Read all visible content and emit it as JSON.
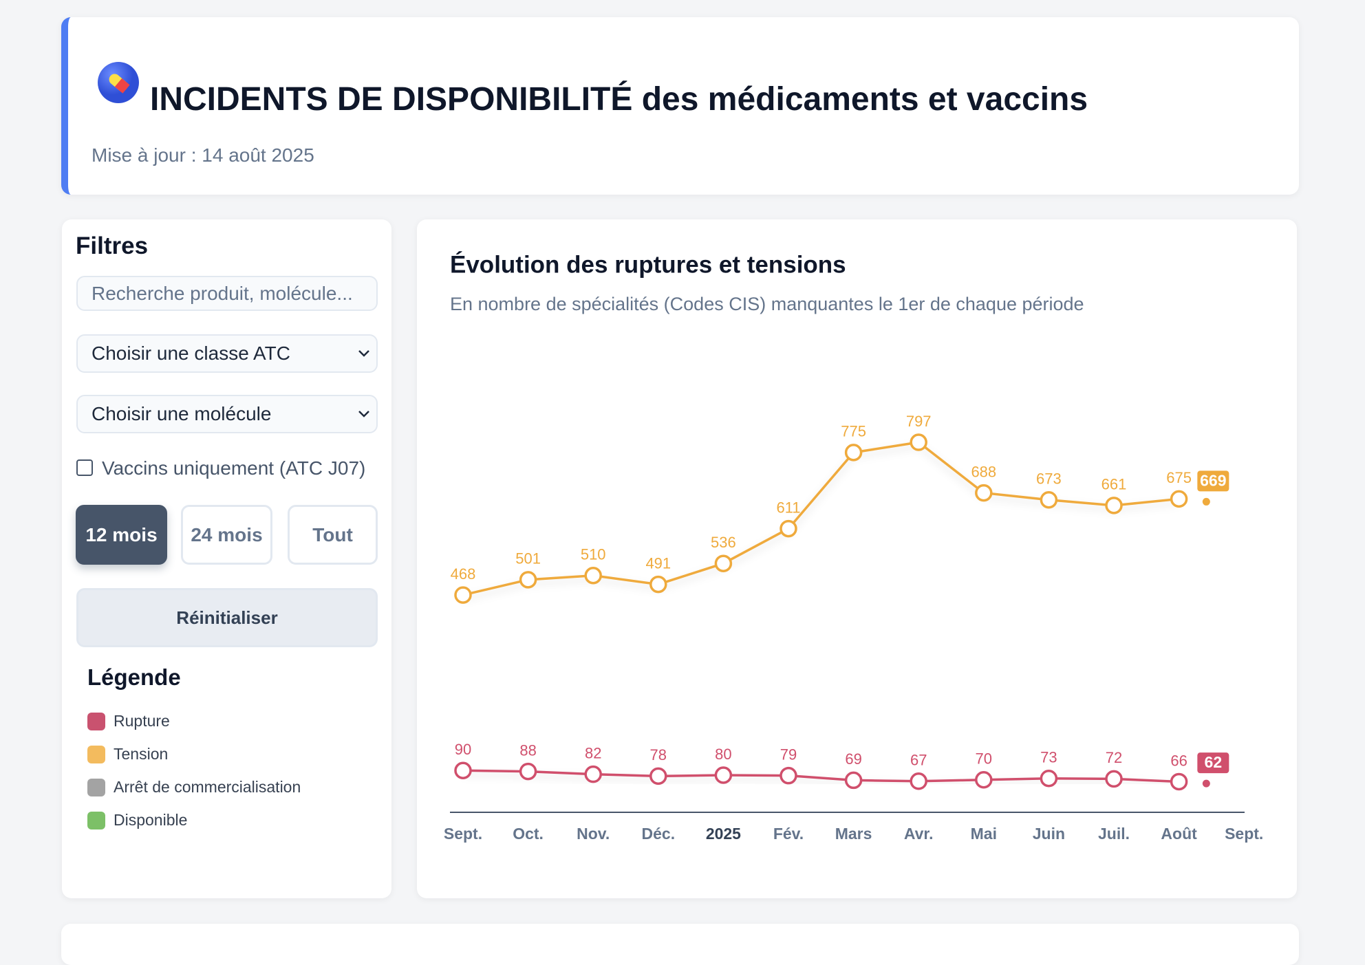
{
  "header": {
    "title_bold": "INCIDENTS DE DISPONIBILITÉ",
    "title_rest": "des médicaments et vaccins",
    "updated": "Mise à jour : 14 août 2025"
  },
  "filters": {
    "title": "Filtres",
    "search_placeholder": "Recherche produit, molécule...",
    "atc_select": "Choisir une classe ATC",
    "molecule_select": "Choisir une molécule",
    "vaccine_checkbox": "Vaccins uniquement (ATC J07)",
    "periods": [
      "12 mois",
      "24 mois",
      "Tout"
    ],
    "reset": "Réinitialiser"
  },
  "legend": {
    "title": "Légende",
    "items": [
      {
        "label": "Rupture",
        "color": "#c9526f"
      },
      {
        "label": "Tension",
        "color": "#f3bb5e"
      },
      {
        "label": "Arrêt de commercialisation",
        "color": "#a3a3a3"
      },
      {
        "label": "Disponible",
        "color": "#7cc067"
      }
    ]
  },
  "chart_data": {
    "type": "line",
    "title": "Évolution des ruptures et tensions",
    "subtitle": "En nombre de spécialités (Codes CIS) manquantes le 1er de chaque période",
    "categories": [
      "Sept.",
      "Oct.",
      "Nov.",
      "Déc.",
      "2025",
      "Fév.",
      "Mars",
      "Avr.",
      "Mai",
      "Juin",
      "Juil.",
      "Août",
      "Sept."
    ],
    "series": [
      {
        "color": "#efaa3c",
        "values": [
          468,
          501,
          510,
          491,
          536,
          611,
          775,
          797,
          688,
          673,
          661,
          675,
          null
        ],
        "latest": 669
      },
      {
        "color": "#d04f6c",
        "values": [
          90,
          88,
          82,
          78,
          80,
          79,
          69,
          67,
          70,
          73,
          72,
          66,
          null
        ],
        "latest": 62
      }
    ],
    "ylim": [
      0,
      1000
    ]
  }
}
